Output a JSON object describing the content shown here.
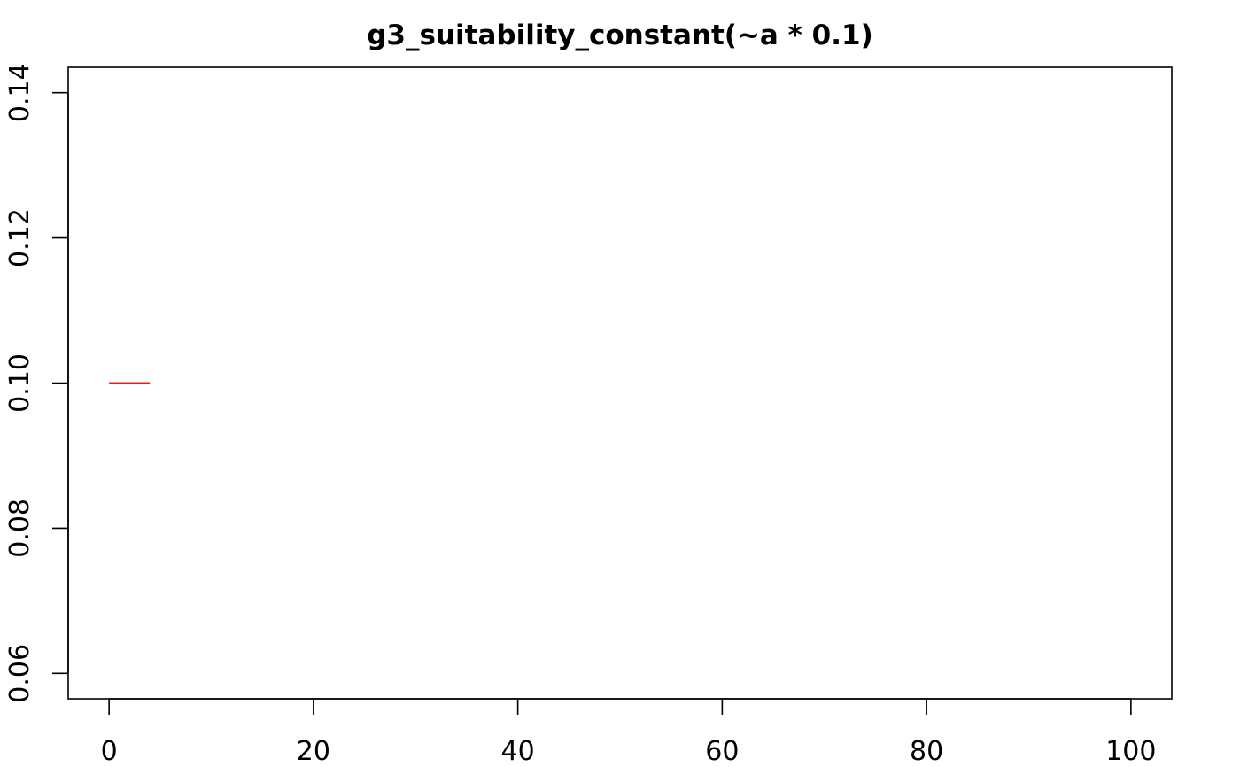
{
  "chart_data": {
    "type": "line",
    "title": "g3_suitability_constant(~a * 0.1)",
    "xlabel": "",
    "ylabel": "",
    "xlim": [
      -4,
      104
    ],
    "ylim": [
      0.0565,
      0.1435
    ],
    "x_ticks": [
      0,
      20,
      40,
      60,
      80,
      100
    ],
    "x_tick_labels": [
      "0",
      "20",
      "40",
      "60",
      "80",
      "100"
    ],
    "y_ticks": [
      0.06,
      0.08,
      0.1,
      0.12,
      0.14
    ],
    "y_tick_labels": [
      "0.06",
      "0.08",
      "0.10",
      "0.12",
      "0.14"
    ],
    "grid": false,
    "series": [
      {
        "color": "#df2020",
        "x": [
          0,
          4
        ],
        "y": [
          0.1,
          0.1
        ]
      }
    ]
  }
}
